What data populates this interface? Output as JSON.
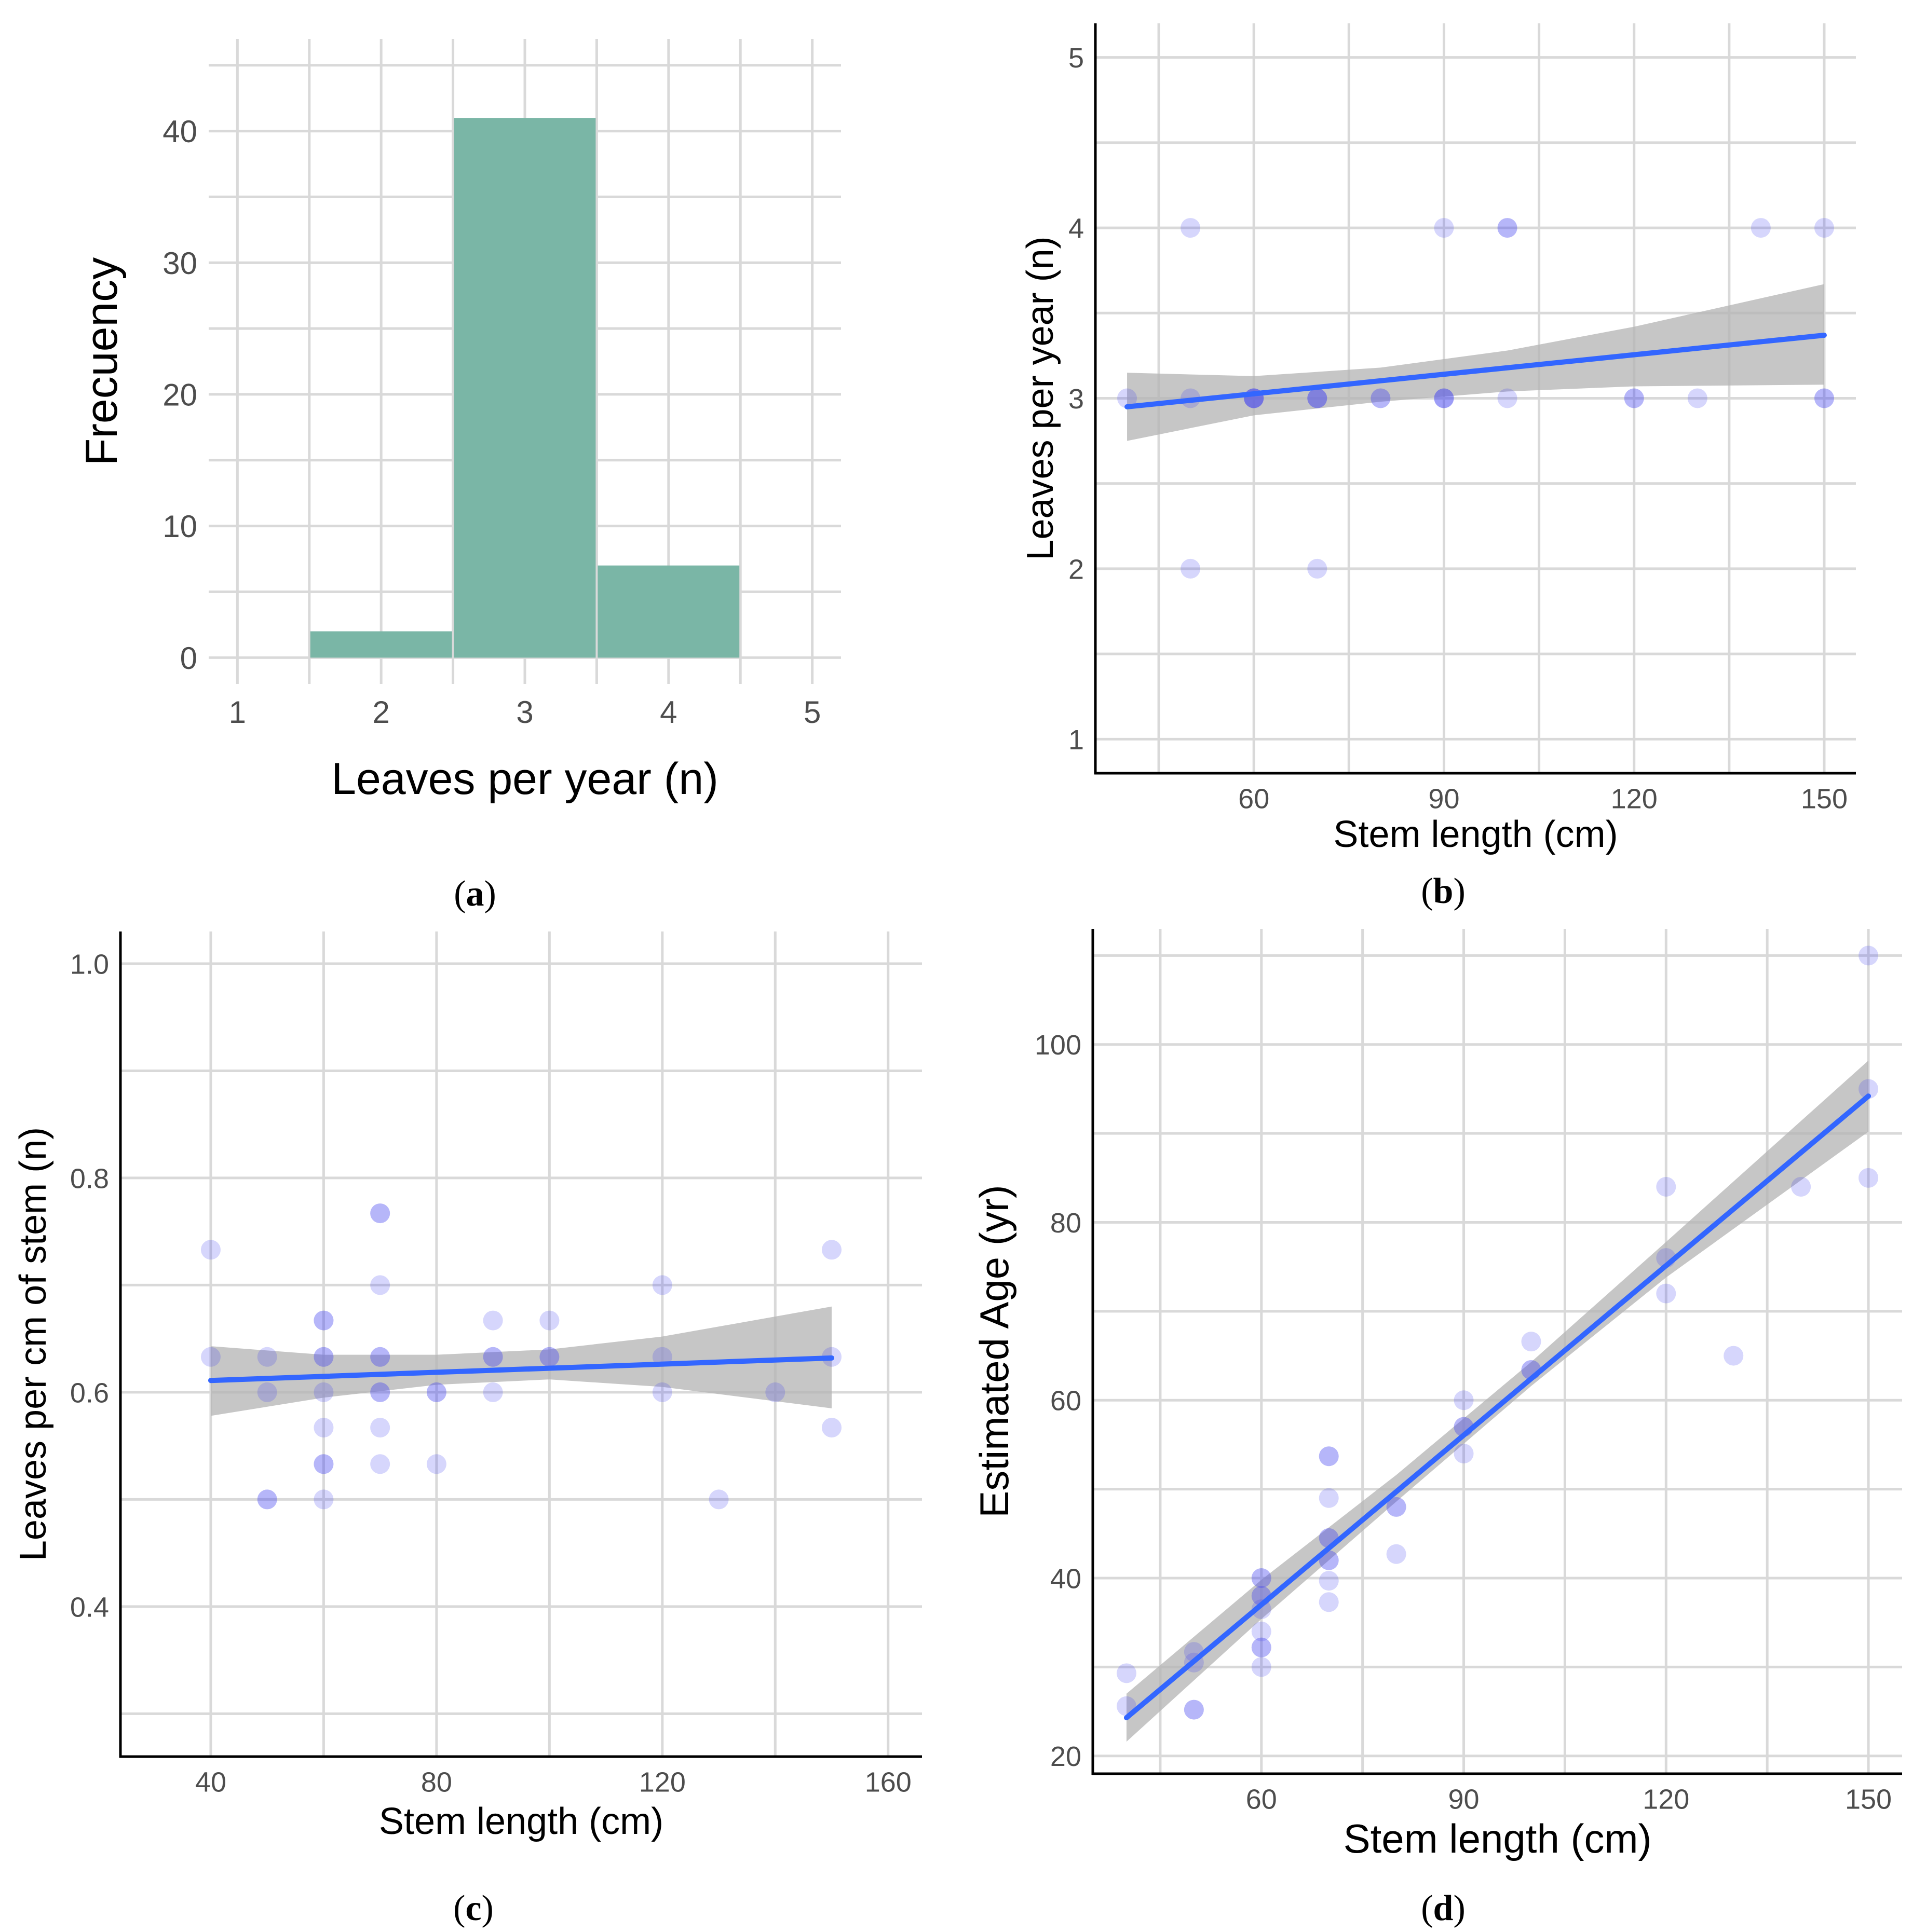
{
  "colors": {
    "bar_fill": "#7ab6a6",
    "point": "#4646f0",
    "trend_line": "#3366ff",
    "confidence_band": "#b3b3b3",
    "grid": "#d9d9d9"
  },
  "chart_data": [
    {
      "id": "a",
      "panel_label": {
        "open": "(",
        "letter": "a",
        "close": ")"
      },
      "type": "bar",
      "xlabel": "Leaves per year (n)",
      "ylabel": "Frecuency",
      "xlim": [
        0.8,
        5.2
      ],
      "ylim": [
        -2,
        47
      ],
      "xticks": [
        1,
        2,
        3,
        4,
        5
      ],
      "yticks": [
        0,
        10,
        20,
        30,
        40
      ],
      "grid": true,
      "axis_lines": false,
      "bins": [
        {
          "x": 2,
          "count": 2
        },
        {
          "x": 3,
          "count": 41
        },
        {
          "x": 4,
          "count": 7
        }
      ]
    },
    {
      "id": "b",
      "panel_label": {
        "open": "(",
        "letter": "b",
        "close": ")"
      },
      "type": "scatter",
      "xlabel": "Stem length (cm)",
      "ylabel": "Leaves per year (n)",
      "xlim": [
        35,
        155
      ],
      "ylim": [
        0.8,
        5.2
      ],
      "xticks": [
        60,
        90,
        120,
        150
      ],
      "yticks": [
        1,
        2,
        3,
        4,
        5
      ],
      "grid": true,
      "axis_lines": true,
      "points": [
        [
          40,
          3
        ],
        [
          50,
          4
        ],
        [
          50,
          3
        ],
        [
          50,
          2
        ],
        [
          60,
          3
        ],
        [
          60,
          3
        ],
        [
          60,
          3
        ],
        [
          60,
          3
        ],
        [
          70,
          3
        ],
        [
          70,
          3
        ],
        [
          70,
          3
        ],
        [
          70,
          2
        ],
        [
          80,
          3
        ],
        [
          80,
          3
        ],
        [
          90,
          4
        ],
        [
          90,
          3
        ],
        [
          90,
          3
        ],
        [
          90,
          3
        ],
        [
          100,
          4
        ],
        [
          100,
          4
        ],
        [
          100,
          3
        ],
        [
          120,
          3
        ],
        [
          120,
          3
        ],
        [
          130,
          3
        ],
        [
          140,
          4
        ],
        [
          150,
          4
        ],
        [
          150,
          3
        ],
        [
          150,
          3
        ]
      ],
      "trend": {
        "x": [
          40,
          150
        ],
        "y": [
          2.95,
          3.37
        ]
      },
      "band": {
        "x": [
          40,
          60,
          80,
          100,
          120,
          150
        ],
        "upper": [
          3.15,
          3.13,
          3.18,
          3.28,
          3.42,
          3.67
        ],
        "lower": [
          2.75,
          2.9,
          2.98,
          3.04,
          3.07,
          3.08
        ]
      }
    },
    {
      "id": "c",
      "panel_label": {
        "open": "(",
        "letter": "c",
        "close": ")"
      },
      "type": "scatter",
      "xlabel": "Stem length (cm)",
      "ylabel": "Leaves per cm of stem (n)",
      "xlim": [
        24,
        166
      ],
      "ylim": [
        0.26,
        1.03
      ],
      "xticks": [
        40,
        80,
        120,
        160
      ],
      "yticks": [
        0.4,
        0.6,
        0.8,
        1.0
      ],
      "ytick_labels": [
        "0.4",
        "0.6",
        "0.8",
        "1.0"
      ],
      "grid": true,
      "axis_lines": true,
      "points": [
        [
          40,
          0.733
        ],
        [
          40,
          0.633
        ],
        [
          50,
          0.633
        ],
        [
          50,
          0.6
        ],
        [
          50,
          0.5
        ],
        [
          50,
          0.5
        ],
        [
          60,
          0.667
        ],
        [
          60,
          0.667
        ],
        [
          60,
          0.633
        ],
        [
          60,
          0.633
        ],
        [
          60,
          0.6
        ],
        [
          60,
          0.567
        ],
        [
          60,
          0.533
        ],
        [
          60,
          0.533
        ],
        [
          60,
          0.5
        ],
        [
          70,
          0.767
        ],
        [
          70,
          0.767
        ],
        [
          70,
          0.7
        ],
        [
          70,
          0.633
        ],
        [
          70,
          0.633
        ],
        [
          70,
          0.6
        ],
        [
          70,
          0.6
        ],
        [
          70,
          0.567
        ],
        [
          70,
          0.533
        ],
        [
          80,
          0.6
        ],
        [
          80,
          0.6
        ],
        [
          80,
          0.533
        ],
        [
          90,
          0.667
        ],
        [
          90,
          0.633
        ],
        [
          90,
          0.633
        ],
        [
          90,
          0.6
        ],
        [
          100,
          0.667
        ],
        [
          100,
          0.633
        ],
        [
          100,
          0.633
        ],
        [
          120,
          0.7
        ],
        [
          120,
          0.633
        ],
        [
          120,
          0.6
        ],
        [
          130,
          0.5
        ],
        [
          140,
          0.6
        ],
        [
          150,
          0.733
        ],
        [
          150,
          0.633
        ],
        [
          150,
          0.567
        ]
      ],
      "trend": {
        "x": [
          40,
          150
        ],
        "y": [
          0.611,
          0.632
        ]
      },
      "band": {
        "x": [
          40,
          60,
          80,
          100,
          120,
          150
        ],
        "upper": [
          0.643,
          0.635,
          0.635,
          0.64,
          0.652,
          0.68
        ],
        "lower": [
          0.578,
          0.595,
          0.607,
          0.612,
          0.605,
          0.585
        ]
      }
    },
    {
      "id": "d",
      "panel_label": {
        "open": "(",
        "letter": "d",
        "close": ")"
      },
      "type": "scatter",
      "xlabel": "Stem length (cm)",
      "ylabel": "Estimated Age (yr)",
      "xlim": [
        35,
        155
      ],
      "ylim": [
        18,
        113
      ],
      "xticks": [
        60,
        90,
        120,
        150
      ],
      "yticks": [
        20,
        40,
        60,
        80,
        100
      ],
      "grid": true,
      "axis_lines": true,
      "points": [
        [
          40,
          29.3
        ],
        [
          40,
          25.6
        ],
        [
          50,
          31.7
        ],
        [
          50,
          30.5
        ],
        [
          50,
          25.2
        ],
        [
          50,
          25.2
        ],
        [
          60,
          40
        ],
        [
          60,
          40
        ],
        [
          60,
          38
        ],
        [
          60,
          38
        ],
        [
          60,
          36.5
        ],
        [
          60,
          34
        ],
        [
          60,
          32.2
        ],
        [
          60,
          32.2
        ],
        [
          60,
          30
        ],
        [
          70,
          53.7
        ],
        [
          70,
          53.7
        ],
        [
          70,
          49
        ],
        [
          70,
          44.5
        ],
        [
          70,
          44.5
        ],
        [
          70,
          42
        ],
        [
          70,
          42
        ],
        [
          70,
          39.7
        ],
        [
          70,
          37.3
        ],
        [
          80,
          48
        ],
        [
          80,
          48
        ],
        [
          80,
          42.7
        ],
        [
          90,
          60
        ],
        [
          90,
          57
        ],
        [
          90,
          57
        ],
        [
          90,
          54
        ],
        [
          100,
          66.6
        ],
        [
          100,
          63.4
        ],
        [
          100,
          63.4
        ],
        [
          120,
          84
        ],
        [
          120,
          76
        ],
        [
          120,
          72
        ],
        [
          130,
          65
        ],
        [
          140,
          84
        ],
        [
          150,
          110
        ],
        [
          150,
          95
        ],
        [
          150,
          85
        ]
      ],
      "trend": {
        "x": [
          40,
          150
        ],
        "y": [
          24.3,
          94.2
        ]
      },
      "band": {
        "x": [
          40,
          60,
          80,
          100,
          120,
          150
        ],
        "upper": [
          27,
          39.8,
          51.6,
          64.3,
          77.8,
          98.2
        ],
        "lower": [
          21.6,
          35.4,
          48.6,
          61.6,
          73.8,
          90.2
        ]
      }
    }
  ]
}
